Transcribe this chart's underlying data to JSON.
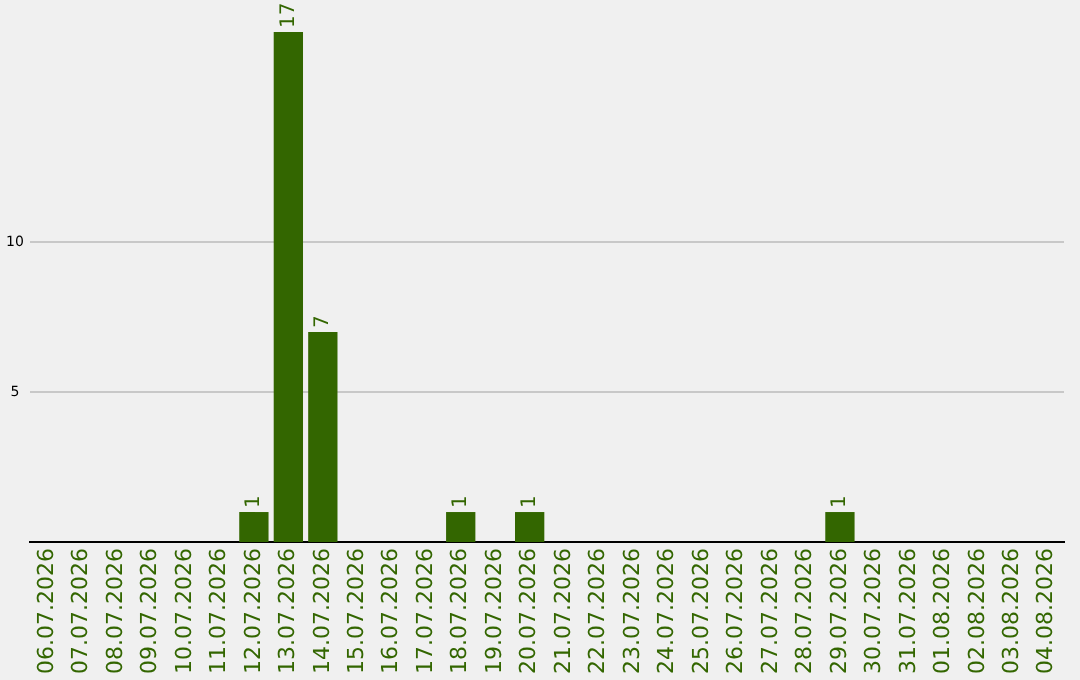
{
  "chart_data": {
    "type": "bar",
    "categories": [
      "06.07.2026",
      "07.07.2026",
      "08.07.2026",
      "09.07.2026",
      "10.07.2026",
      "11.07.2026",
      "12.07.2026",
      "13.07.2026",
      "14.07.2026",
      "15.07.2026",
      "16.07.2026",
      "17.07.2026",
      "18.07.2026",
      "19.07.2026",
      "20.07.2026",
      "21.07.2026",
      "22.07.2026",
      "23.07.2026",
      "24.07.2026",
      "25.07.2026",
      "26.07.2026",
      "27.07.2026",
      "28.07.2026",
      "29.07.2026",
      "30.07.2026",
      "31.07.2026",
      "01.08.2026",
      "02.08.2026",
      "03.08.2026",
      "04.08.2026"
    ],
    "values": [
      0,
      0,
      0,
      0,
      0,
      0,
      1,
      17,
      7,
      0,
      0,
      0,
      1,
      0,
      1,
      0,
      0,
      0,
      0,
      0,
      0,
      0,
      0,
      1,
      0,
      0,
      0,
      0,
      0,
      0
    ],
    "value_labels": [
      null,
      null,
      null,
      null,
      null,
      null,
      "1",
      "17",
      "7",
      null,
      null,
      null,
      "1",
      null,
      "1",
      null,
      null,
      null,
      null,
      null,
      null,
      null,
      null,
      "1",
      null,
      null,
      null,
      null,
      null,
      null
    ],
    "color": "#336600",
    "ylim": [
      0,
      17
    ],
    "yticks": [
      5,
      10
    ],
    "grid": "y"
  }
}
